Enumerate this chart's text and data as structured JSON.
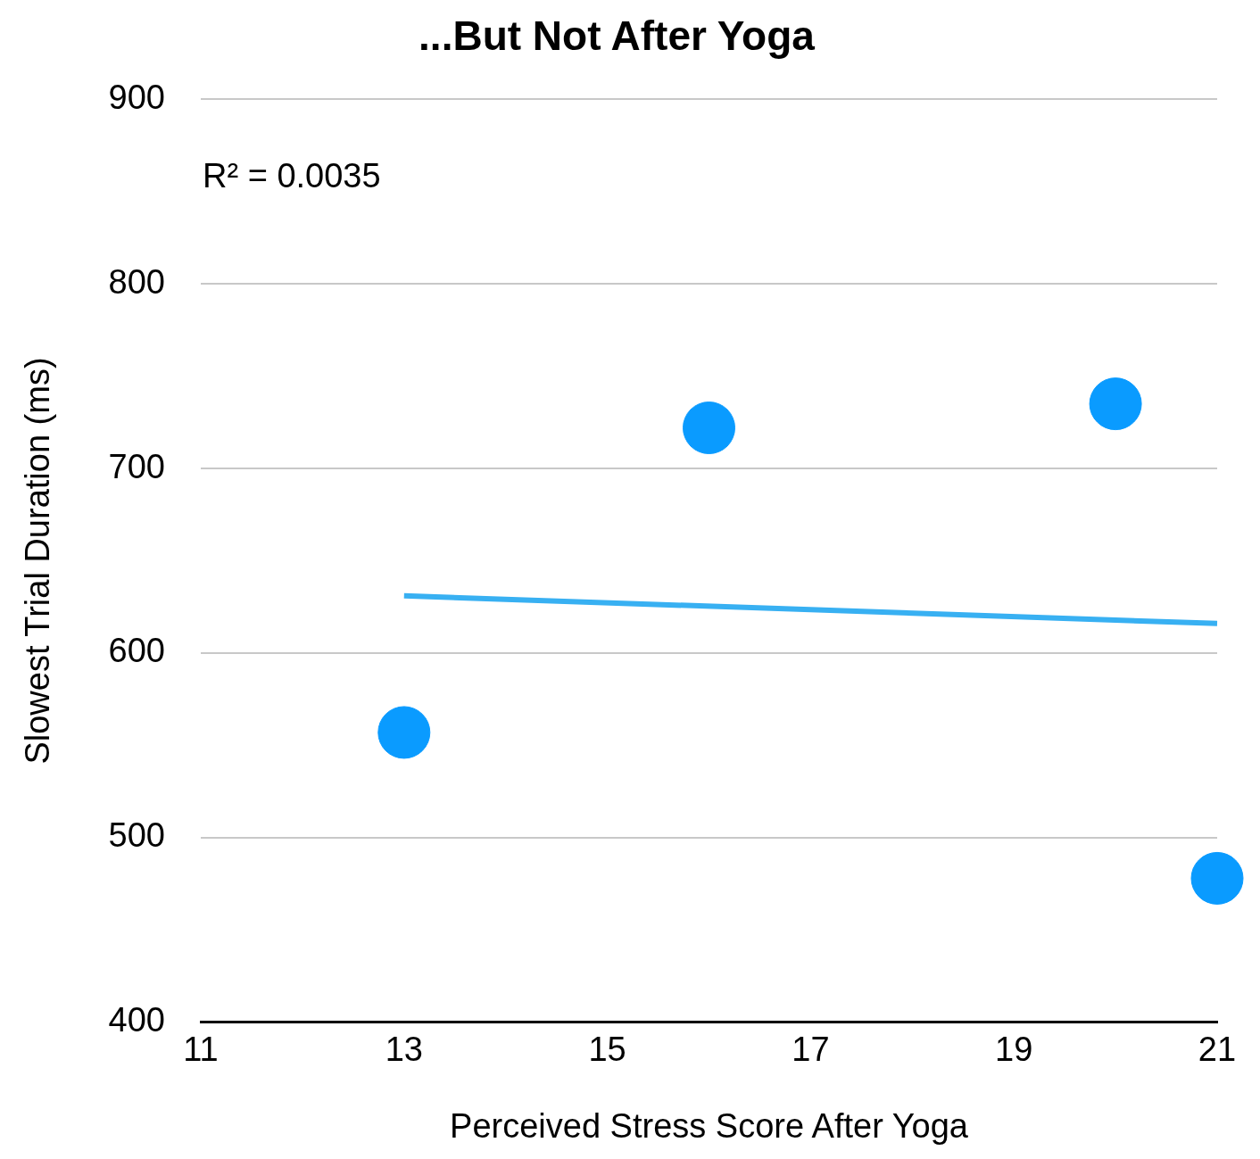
{
  "chart_data": {
    "type": "scatter",
    "title": "...But Not After Yoga",
    "xlabel": "Perceived Stress Score After Yoga",
    "ylabel": "Slowest Trial Duration (ms)",
    "x": [
      13,
      16,
      20,
      21
    ],
    "series": [
      {
        "color": "#0a9bff",
        "marker": "circle",
        "values": [
          557,
          722,
          735,
          478
        ]
      },
      {
        "type": "line",
        "color": "#38b0f2",
        "marker": "none",
        "x": [
          13,
          21
        ],
        "values": [
          631,
          616
        ]
      }
    ],
    "xlim": [
      11,
      21
    ],
    "xticks": [
      11,
      13,
      15,
      17,
      19,
      21
    ],
    "ylim": [
      400,
      900
    ],
    "yticks": [
      400,
      500,
      600,
      700,
      800,
      900
    ],
    "grid": "y",
    "legend": false,
    "annotations": [
      "R² = 0.0035"
    ]
  }
}
